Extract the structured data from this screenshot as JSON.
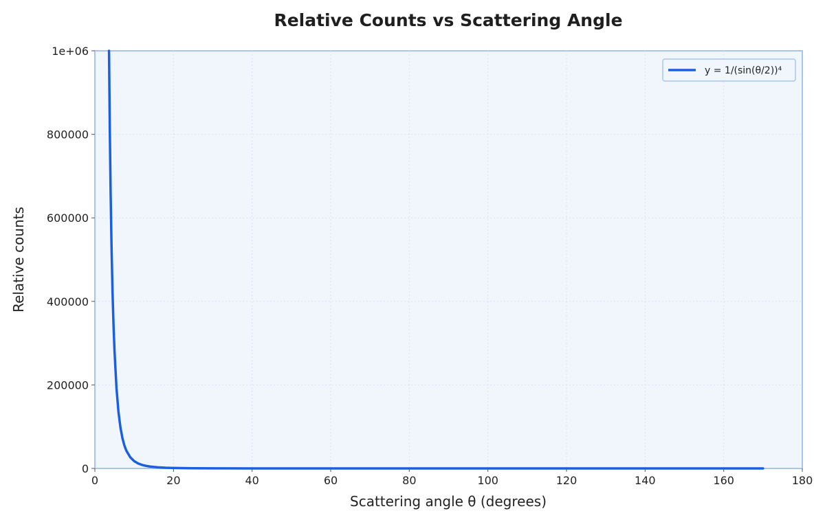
{
  "chart_data": {
    "type": "line",
    "title": "Relative Counts vs Scattering Angle",
    "xlabel": "Scattering angle θ (degrees)",
    "ylabel": "Relative counts",
    "xlim": [
      0,
      180
    ],
    "ylim": [
      0,
      1000000
    ],
    "x_ticks": [
      0,
      20,
      40,
      60,
      80,
      100,
      120,
      140,
      160,
      180
    ],
    "x_tick_labels": [
      "0",
      "20",
      "40",
      "60",
      "80",
      "100",
      "120",
      "140",
      "160",
      "180"
    ],
    "y_ticks": [
      0,
      200000,
      400000,
      600000,
      800000,
      1000000
    ],
    "y_tick_labels": [
      "0",
      "200000",
      "400000",
      "600000",
      "800000",
      "1e+06"
    ],
    "grid": true,
    "legend_position": "top-right",
    "series": [
      {
        "name": "y = 1/(sin(θ/2))⁴",
        "color": "#1a5fe0",
        "x": [
          3.6,
          3.8,
          4,
          4.25,
          4.5,
          4.75,
          5,
          5.5,
          6,
          6.5,
          7,
          7.5,
          8,
          9,
          10,
          11,
          12,
          13,
          14,
          16,
          18,
          20,
          25,
          30,
          40,
          50,
          60,
          80,
          100,
          120,
          140,
          160,
          170
        ],
        "y": [
          1000000,
          810000,
          665000,
          525000,
          420000,
          342000,
          281000,
          192000,
          135600,
          98400,
          73000,
          55300,
          42700,
          26700,
          17500,
          11960,
          8450,
          6140,
          4570,
          2680,
          1676,
          1103,
          454,
          222,
          71.4,
          30.1,
          16.0,
          6.1,
          3.1,
          1.78,
          1.27,
          1.03,
          1.01
        ]
      }
    ]
  }
}
